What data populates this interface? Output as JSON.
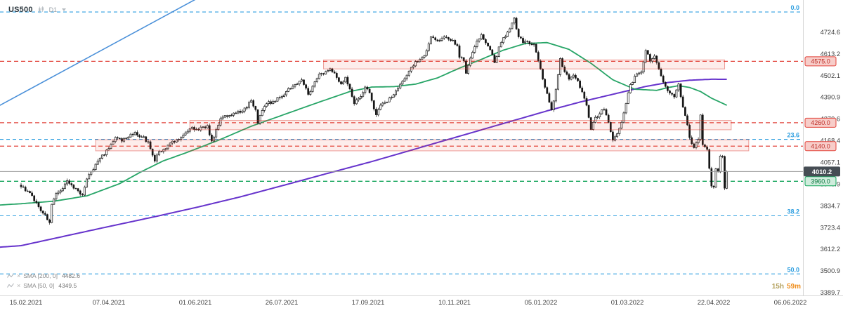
{
  "header": {
    "symbol": "US500",
    "timeframe": "D1"
  },
  "indicators": [
    {
      "label": "SMA [200, 0]",
      "value": "4482.6"
    },
    {
      "label": "SMA [50, 0]",
      "value": "4349.5"
    }
  ],
  "countdown": {
    "hours": "15h",
    "minutes": "59m"
  },
  "colors": {
    "background": "#ffffff",
    "axis_text": "#3f3f3f",
    "axis_line": "#d6d6d6",
    "bull_body": "#ffffff",
    "bear_body": "#141414",
    "wick": "#141414",
    "resistance": "#e2443b",
    "resistance_badge_bg": "#f7cdc9",
    "resistance_badge_text": "#c0302a",
    "zone_fill": "rgba(231,76,60,0.10)",
    "zone_border": "rgba(217,48,37,0.45)",
    "support": "#12a45a",
    "support_badge_bg": "#cfecdc",
    "support_badge_text": "#0d7a41",
    "fibonacci": "#2f9fe0",
    "current_line": "#9a9a9a",
    "current_badge_bg": "#464d54",
    "current_badge_text": "#ffffff",
    "sma50": "#27a567",
    "sma200": "#6633cc",
    "trendline": "#4a90d9"
  },
  "chart_data": {
    "type": "candlestick",
    "symbol": "US500",
    "timeframe": "D1",
    "current_price": 4010.2,
    "noise_seed": 97,
    "y_axis": {
      "ticks": [
        "4724.6",
        "4613.2",
        "4502.1",
        "4390.9",
        "4279.6",
        "4168.4",
        "4057.1",
        "3945.9",
        "3834.7",
        "3723.4",
        "3612.2",
        "3500.9",
        "3389.7"
      ]
    },
    "x_axis": {
      "ticks": [
        "15.02.2021",
        "07.04.2021",
        "01.06.2021",
        "26.07.2021",
        "17.09.2021",
        "10.11.2021",
        "05.01.2022",
        "01.03.2022",
        "22.04.2022",
        "06.06.2022"
      ]
    },
    "levels": {
      "resistance": [
        {
          "label": "4575.0",
          "price": 4575.0
        },
        {
          "label": "4260.0",
          "price": 4260.0
        },
        {
          "label": "4140.0",
          "price": 4140.0
        }
      ],
      "support": [
        {
          "label": "3960.0",
          "price": 3960.0
        }
      ],
      "fibonacci": [
        {
          "label": "0.0",
          "price": 4828
        },
        {
          "label": "23.6",
          "price": 4175
        },
        {
          "label": "38.2",
          "price": 3783
        },
        {
          "label": "50.0",
          "price": 3485
        }
      ]
    },
    "zones": [
      {
        "price_top": 4582,
        "price_bottom": 4536,
        "start_index": 138,
        "end_index": 321
      },
      {
        "price_top": 4272,
        "price_bottom": 4224,
        "start_index": 77,
        "end_index": 324
      },
      {
        "price_top": 4173,
        "price_bottom": 4116,
        "start_index": 34,
        "end_index": 332
      }
    ],
    "trendline": {
      "from_index": -12,
      "from_price": 4335,
      "to_index": 80,
      "to_price": 4895
    },
    "sma50": {
      "label": "SMA [50, 0]",
      "value": 4349.5,
      "anchors": [
        [
          -10,
          3838
        ],
        [
          0,
          3845
        ],
        [
          15,
          3858
        ],
        [
          30,
          3885
        ],
        [
          45,
          3948
        ],
        [
          55,
          4010
        ],
        [
          65,
          4065
        ],
        [
          75,
          4105
        ],
        [
          90,
          4170
        ],
        [
          105,
          4242
        ],
        [
          120,
          4302
        ],
        [
          135,
          4362
        ],
        [
          150,
          4420
        ],
        [
          160,
          4443
        ],
        [
          170,
          4445
        ],
        [
          180,
          4458
        ],
        [
          190,
          4490
        ],
        [
          200,
          4540
        ],
        [
          210,
          4585
        ],
        [
          220,
          4632
        ],
        [
          230,
          4666
        ],
        [
          240,
          4671
        ],
        [
          250,
          4636
        ],
        [
          260,
          4565
        ],
        [
          270,
          4480
        ],
        [
          280,
          4432
        ],
        [
          290,
          4426
        ],
        [
          295,
          4440
        ],
        [
          300,
          4450
        ],
        [
          305,
          4441
        ],
        [
          310,
          4420
        ],
        [
          315,
          4386
        ],
        [
          322,
          4349.5
        ]
      ]
    },
    "sma200": {
      "label": "SMA [200, 0]",
      "value": 4482.6,
      "anchors": [
        [
          -10,
          3622
        ],
        [
          0,
          3630
        ],
        [
          20,
          3679
        ],
        [
          40,
          3728
        ],
        [
          60,
          3776
        ],
        [
          80,
          3826
        ],
        [
          100,
          3880
        ],
        [
          120,
          3940
        ],
        [
          140,
          4001
        ],
        [
          160,
          4061
        ],
        [
          180,
          4126
        ],
        [
          200,
          4191
        ],
        [
          220,
          4256
        ],
        [
          240,
          4321
        ],
        [
          255,
          4366
        ],
        [
          270,
          4406
        ],
        [
          285,
          4446
        ],
        [
          295,
          4466
        ],
        [
          305,
          4478
        ],
        [
          315,
          4483
        ],
        [
          322,
          4482.6
        ]
      ]
    },
    "close_anchors": [
      [
        0,
        3932
      ],
      [
        3,
        3909
      ],
      [
        5,
        3886
      ],
      [
        8,
        3829
      ],
      [
        11,
        3790
      ],
      [
        13,
        3748
      ],
      [
        14,
        3842
      ],
      [
        16,
        3898
      ],
      [
        18,
        3911
      ],
      [
        21,
        3963
      ],
      [
        23,
        3941
      ],
      [
        26,
        3911
      ],
      [
        28,
        3889
      ],
      [
        30,
        3972
      ],
      [
        33,
        4020
      ],
      [
        36,
        4078
      ],
      [
        40,
        4128
      ],
      [
        43,
        4185
      ],
      [
        46,
        4165
      ],
      [
        49,
        4187
      ],
      [
        52,
        4211
      ],
      [
        55,
        4188
      ],
      [
        58,
        4163
      ],
      [
        61,
        4063
      ],
      [
        63,
        4113
      ],
      [
        66,
        4127
      ],
      [
        68,
        4156
      ],
      [
        71,
        4173
      ],
      [
        74,
        4197
      ],
      [
        77,
        4230
      ],
      [
        80,
        4227
      ],
      [
        83,
        4239
      ],
      [
        85,
        4246
      ],
      [
        87,
        4166
      ],
      [
        89,
        4225
      ],
      [
        91,
        4281
      ],
      [
        95,
        4297
      ],
      [
        98,
        4310
      ],
      [
        101,
        4320
      ],
      [
        105,
        4374
      ],
      [
        107,
        4327
      ],
      [
        108,
        4258
      ],
      [
        110,
        4323
      ],
      [
        112,
        4358
      ],
      [
        115,
        4370
      ],
      [
        118,
        4387
      ],
      [
        121,
        4420
      ],
      [
        124,
        4447
      ],
      [
        128,
        4480
      ],
      [
        131,
        4405
      ],
      [
        134,
        4470
      ],
      [
        136,
        4509
      ],
      [
        139,
        4522
      ],
      [
        141,
        4537
      ],
      [
        143,
        4514
      ],
      [
        146,
        4459
      ],
      [
        148,
        4493
      ],
      [
        150,
        4433
      ],
      [
        152,
        4357
      ],
      [
        155,
        4395
      ],
      [
        157,
        4443
      ],
      [
        159,
        4413
      ],
      [
        161,
        4330
      ],
      [
        162,
        4300
      ],
      [
        164,
        4350
      ],
      [
        166,
        4363
      ],
      [
        169,
        4391
      ],
      [
        172,
        4438
      ],
      [
        175,
        4486
      ],
      [
        178,
        4544
      ],
      [
        180,
        4574
      ],
      [
        183,
        4596
      ],
      [
        185,
        4630
      ],
      [
        187,
        4701
      ],
      [
        189,
        4685
      ],
      [
        191,
        4682
      ],
      [
        193,
        4700
      ],
      [
        195,
        4688
      ],
      [
        197,
        4683
      ],
      [
        199,
        4655
      ],
      [
        200,
        4595
      ],
      [
        202,
        4577
      ],
      [
        203,
        4513
      ],
      [
        205,
        4591
      ],
      [
        207,
        4650
      ],
      [
        210,
        4712
      ],
      [
        212,
        4669
      ],
      [
        214,
        4634
      ],
      [
        216,
        4568
      ],
      [
        218,
        4649
      ],
      [
        220,
        4696
      ],
      [
        222,
        4725
      ],
      [
        225,
        4796
      ],
      [
        227,
        4700
      ],
      [
        229,
        4670
      ],
      [
        231,
        4677
      ],
      [
        234,
        4663
      ],
      [
        236,
        4577
      ],
      [
        238,
        4483
      ],
      [
        240,
        4410
      ],
      [
        242,
        4326
      ],
      [
        244,
        4432
      ],
      [
        246,
        4589
      ],
      [
        248,
        4521
      ],
      [
        250,
        4483
      ],
      [
        252,
        4504
      ],
      [
        254,
        4475
      ],
      [
        256,
        4418
      ],
      [
        258,
        4349
      ],
      [
        260,
        4225
      ],
      [
        262,
        4288
      ],
      [
        264,
        4306
      ],
      [
        266,
        4328
      ],
      [
        268,
        4262
      ],
      [
        270,
        4170
      ],
      [
        272,
        4204
      ],
      [
        274,
        4262
      ],
      [
        276,
        4358
      ],
      [
        278,
        4456
      ],
      [
        281,
        4511
      ],
      [
        283,
        4520
      ],
      [
        285,
        4631
      ],
      [
        287,
        4575
      ],
      [
        289,
        4602
      ],
      [
        292,
        4500
      ],
      [
        294,
        4446
      ],
      [
        296,
        4412
      ],
      [
        298,
        4392
      ],
      [
        300,
        4459
      ],
      [
        301,
        4393
      ],
      [
        303,
        4296
      ],
      [
        305,
        4184
      ],
      [
        307,
        4132
      ],
      [
        309,
        4175
      ],
      [
        310,
        4300
      ],
      [
        311,
        4147
      ],
      [
        313,
        4123
      ],
      [
        315,
        3935
      ],
      [
        316,
        3930
      ],
      [
        317,
        4024
      ],
      [
        318,
        4008
      ],
      [
        319,
        4089
      ],
      [
        320,
        4088
      ],
      [
        321,
        3924
      ],
      [
        322,
        4010.2
      ]
    ]
  }
}
